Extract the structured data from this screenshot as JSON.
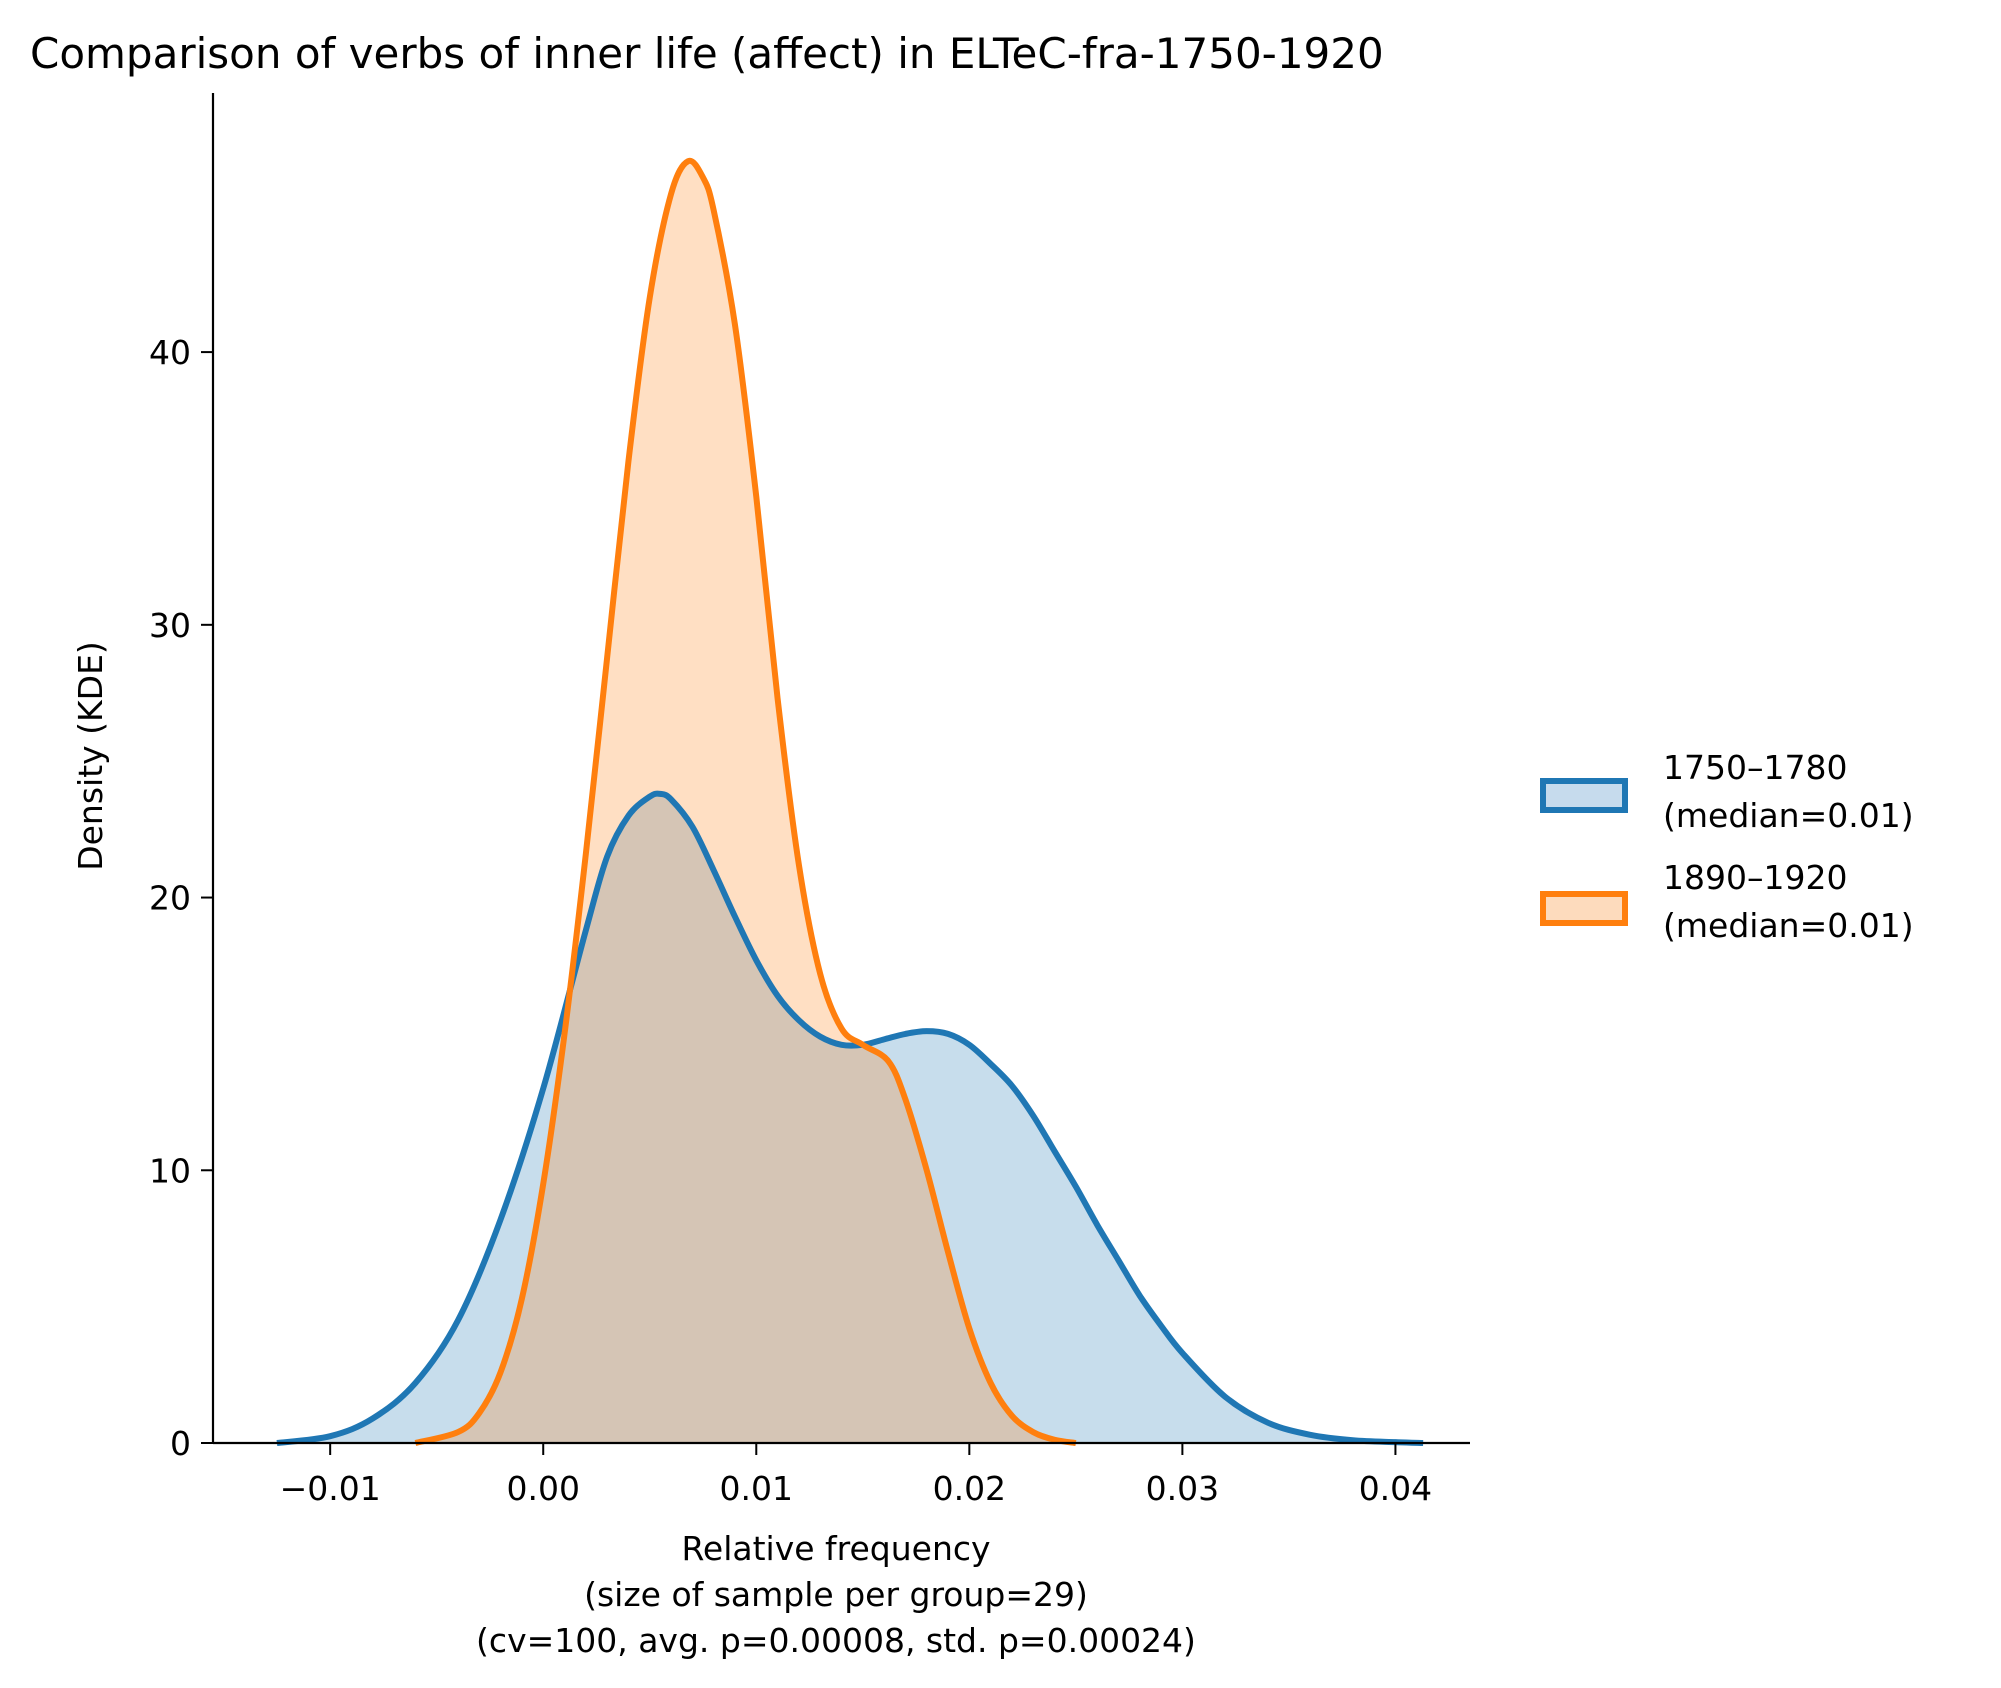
{
  "chart_data": {
    "type": "area",
    "title": "Comparison of verbs of inner life (affect) in ELTeC-fra-1750-1920",
    "ylabel": "Density (KDE)",
    "xlabel_lines": [
      "Relative frequency",
      "(size of sample per group=29)",
      "(cv=100, avg. p=0.00008, std. p=0.00024)"
    ],
    "xlim": [
      -0.0155,
      0.0435
    ],
    "ylim": [
      0,
      49.5
    ],
    "xticks": [
      -0.01,
      0.0,
      0.01,
      0.02,
      0.03,
      0.04
    ],
    "xtick_labels": [
      "−0.01",
      "0.00",
      "0.01",
      "0.02",
      "0.03",
      "0.04"
    ],
    "yticks": [
      0,
      10,
      20,
      30,
      40
    ],
    "ytick_labels": [
      "0",
      "10",
      "20",
      "30",
      "40"
    ],
    "legend_position": "right",
    "series": [
      {
        "name": "1750–1780",
        "legend_lines": [
          "1750–1780",
          "(median=0.01)"
        ],
        "color": "#1f77b4",
        "fill": "#c6dbed",
        "points": [
          [
            -0.0125,
            0.0
          ],
          [
            -0.01,
            0.25
          ],
          [
            -0.008,
            0.9
          ],
          [
            -0.006,
            2.2
          ],
          [
            -0.004,
            4.5
          ],
          [
            -0.002,
            8.2
          ],
          [
            0.0,
            13.0
          ],
          [
            0.002,
            18.8
          ],
          [
            0.003,
            21.5
          ],
          [
            0.004,
            23.0
          ],
          [
            0.005,
            23.7
          ],
          [
            0.0055,
            23.8
          ],
          [
            0.006,
            23.6
          ],
          [
            0.007,
            22.6
          ],
          [
            0.008,
            21.0
          ],
          [
            0.009,
            19.3
          ],
          [
            0.01,
            17.7
          ],
          [
            0.011,
            16.4
          ],
          [
            0.012,
            15.5
          ],
          [
            0.013,
            14.9
          ],
          [
            0.014,
            14.6
          ],
          [
            0.015,
            14.6
          ],
          [
            0.016,
            14.8
          ],
          [
            0.017,
            15.0
          ],
          [
            0.018,
            15.1
          ],
          [
            0.019,
            15.0
          ],
          [
            0.02,
            14.6
          ],
          [
            0.021,
            13.9
          ],
          [
            0.022,
            13.1
          ],
          [
            0.023,
            12.0
          ],
          [
            0.024,
            10.7
          ],
          [
            0.025,
            9.4
          ],
          [
            0.026,
            8.0
          ],
          [
            0.027,
            6.7
          ],
          [
            0.028,
            5.4
          ],
          [
            0.029,
            4.3
          ],
          [
            0.03,
            3.3
          ],
          [
            0.032,
            1.7
          ],
          [
            0.034,
            0.75
          ],
          [
            0.036,
            0.3
          ],
          [
            0.038,
            0.1
          ],
          [
            0.04,
            0.03
          ],
          [
            0.0413,
            0.0
          ]
        ]
      },
      {
        "name": "1890–1920",
        "legend_lines": [
          "1890–1920",
          "(median=0.01)"
        ],
        "color": "#ff7f0e",
        "fill": "#fddbbd",
        "points": [
          [
            -0.006,
            0.0
          ],
          [
            -0.004,
            0.4
          ],
          [
            -0.003,
            1.1
          ],
          [
            -0.002,
            2.6
          ],
          [
            -0.001,
            5.3
          ],
          [
            0.0,
            9.5
          ],
          [
            0.001,
            15.0
          ],
          [
            0.002,
            21.6
          ],
          [
            0.003,
            28.8
          ],
          [
            0.004,
            36.0
          ],
          [
            0.005,
            42.0
          ],
          [
            0.006,
            45.8
          ],
          [
            0.0068,
            47.0
          ],
          [
            0.0075,
            46.4
          ],
          [
            0.008,
            45.2
          ],
          [
            0.009,
            41.0
          ],
          [
            0.01,
            34.7
          ],
          [
            0.011,
            27.3
          ],
          [
            0.012,
            21.2
          ],
          [
            0.013,
            17.2
          ],
          [
            0.014,
            15.2
          ],
          [
            0.015,
            14.6
          ],
          [
            0.0162,
            14.0
          ],
          [
            0.017,
            12.6
          ],
          [
            0.018,
            10.0
          ],
          [
            0.019,
            7.0
          ],
          [
            0.02,
            4.2
          ],
          [
            0.021,
            2.2
          ],
          [
            0.022,
            1.0
          ],
          [
            0.023,
            0.4
          ],
          [
            0.024,
            0.12
          ],
          [
            0.025,
            0.0
          ]
        ]
      }
    ]
  }
}
